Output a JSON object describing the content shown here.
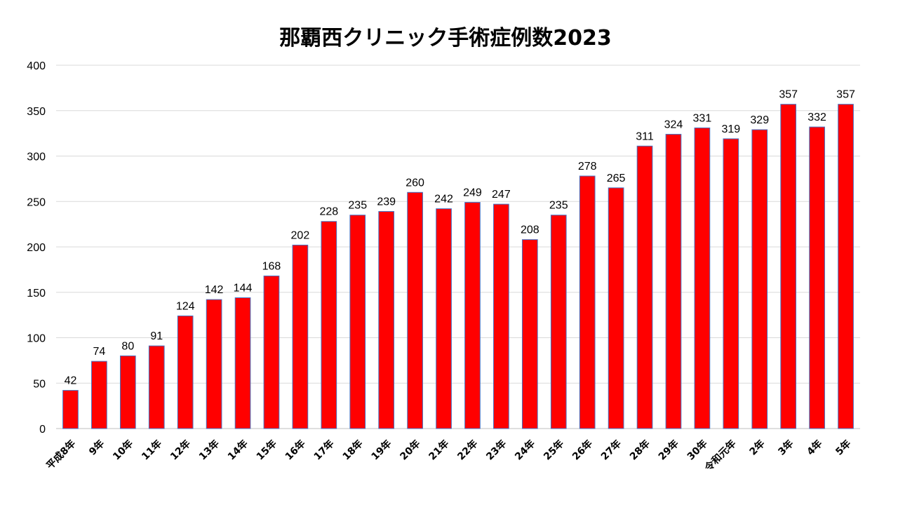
{
  "chart_data": {
    "type": "bar",
    "title": "那覇西クリニック手術症例数2023",
    "xlabel": "",
    "ylabel": "",
    "ylim": [
      0,
      400
    ],
    "yticks": [
      0,
      50,
      100,
      150,
      200,
      250,
      300,
      350,
      400
    ],
    "grid": true,
    "legend": "none",
    "bar_color": "#ff0000",
    "bar_edge_color": "#4472c4",
    "categories": [
      "平成8年",
      "9年",
      "10年",
      "11年",
      "12年",
      "13年",
      "14年",
      "15年",
      "16年",
      "17年",
      "18年",
      "19年",
      "20年",
      "21年",
      "22年",
      "23年",
      "24年",
      "25年",
      "26年",
      "27年",
      "28年",
      "29年",
      "30年",
      "令和元年",
      "2年",
      "3年",
      "4年",
      "5年"
    ],
    "values": [
      42,
      74,
      80,
      91,
      124,
      142,
      144,
      168,
      202,
      228,
      235,
      239,
      260,
      242,
      249,
      247,
      208,
      235,
      278,
      265,
      311,
      324,
      331,
      319,
      329,
      357,
      332,
      357
    ]
  }
}
